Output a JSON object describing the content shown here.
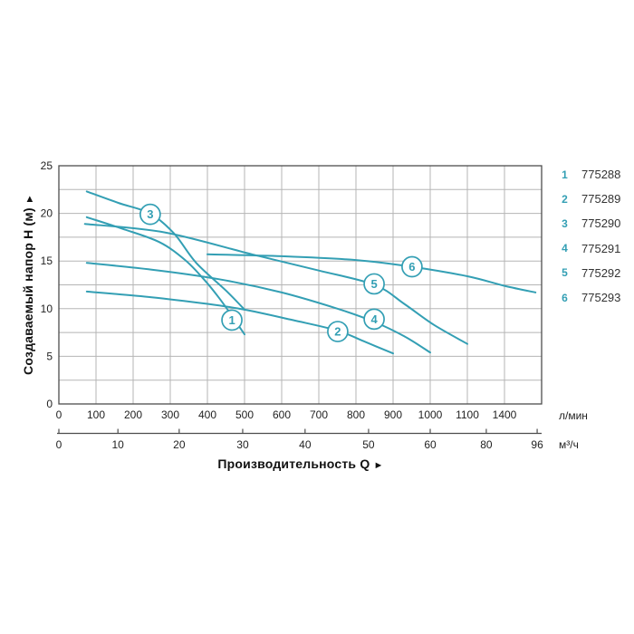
{
  "chart_data": {
    "type": "line",
    "title": "",
    "xlabel": "Производительность Q",
    "x_arrow": "►",
    "ylabel": "Создаваемый напор H (м)",
    "y_arrow": "►",
    "x_unit_primary": "л/мин",
    "x_unit_secondary": "м³/ч",
    "x_ticks_lmin": [
      0,
      100,
      200,
      300,
      400,
      500,
      600,
      700,
      800,
      900,
      1000,
      1100,
      1400
    ],
    "x_ticks_m3h": [
      0,
      10,
      20,
      30,
      40,
      50,
      60,
      80,
      96
    ],
    "y_ticks": [
      0,
      5,
      10,
      15,
      20,
      25
    ],
    "ylim": [
      0,
      25
    ],
    "y_minor_step": 2.5,
    "grid": true,
    "legend_position": "right",
    "series": [
      {
        "label": "1",
        "name": "775288",
        "points": [
          [
            75,
            19.6
          ],
          [
            170,
            18.4
          ],
          [
            270,
            17.0
          ],
          [
            340,
            15.1
          ],
          [
            390,
            13.1
          ],
          [
            430,
            11.2
          ],
          [
            465,
            9.3
          ],
          [
            500,
            7.3
          ]
        ],
        "marker_at": [
          466,
          8.8
        ]
      },
      {
        "label": "2",
        "name": "775289",
        "points": [
          [
            75,
            11.8
          ],
          [
            250,
            11.2
          ],
          [
            400,
            10.5
          ],
          [
            500,
            9.9
          ],
          [
            630,
            8.8
          ],
          [
            750,
            7.7
          ],
          [
            820,
            6.6
          ],
          [
            900,
            5.3
          ]
        ],
        "marker_at": [
          751,
          7.6
        ]
      },
      {
        "label": "3",
        "name": "775290",
        "points": [
          [
            75,
            22.3
          ],
          [
            160,
            21.1
          ],
          [
            245,
            20.0
          ],
          [
            310,
            17.9
          ],
          [
            370,
            14.8
          ],
          [
            450,
            11.9
          ],
          [
            500,
            9.9
          ]
        ],
        "marker_at": [
          246,
          19.9
        ]
      },
      {
        "label": "4",
        "name": "775291",
        "points": [
          [
            75,
            14.8
          ],
          [
            250,
            14.1
          ],
          [
            430,
            13.1
          ],
          [
            600,
            11.7
          ],
          [
            750,
            10.0
          ],
          [
            850,
            8.6
          ],
          [
            930,
            7.1
          ],
          [
            1000,
            5.4
          ]
        ],
        "marker_at": [
          849,
          8.9
        ]
      },
      {
        "label": "5",
        "name": "775292",
        "points": [
          [
            70,
            18.9
          ],
          [
            285,
            18.0
          ],
          [
            520,
            15.7
          ],
          [
            700,
            14.0
          ],
          [
            850,
            12.5
          ],
          [
            930,
            10.5
          ],
          [
            1010,
            8.3
          ],
          [
            1100,
            6.3
          ]
        ],
        "marker_at": [
          849,
          12.6
        ]
      },
      {
        "label": "6",
        "name": "775293",
        "points": [
          [
            400,
            15.7
          ],
          [
            600,
            15.5
          ],
          [
            800,
            15.1
          ],
          [
            950,
            14.4
          ],
          [
            1100,
            13.4
          ],
          [
            1400,
            12.4
          ],
          [
            1650,
            11.7
          ]
        ],
        "marker_at": [
          951,
          14.4
        ]
      }
    ],
    "legend": [
      {
        "label": "1",
        "model": "775288"
      },
      {
        "label": "2",
        "model": "775289"
      },
      {
        "label": "3",
        "model": "775290"
      },
      {
        "label": "4",
        "model": "775291"
      },
      {
        "label": "5",
        "model": "775292"
      },
      {
        "label": "6",
        "model": "775293"
      }
    ],
    "colors": {
      "curve": "#339fb4",
      "grid": "#b5b5b5",
      "axis": "#4d4d4d",
      "tick_text": "#222222",
      "title_text": "#111111",
      "legend_text": "#333333"
    }
  }
}
